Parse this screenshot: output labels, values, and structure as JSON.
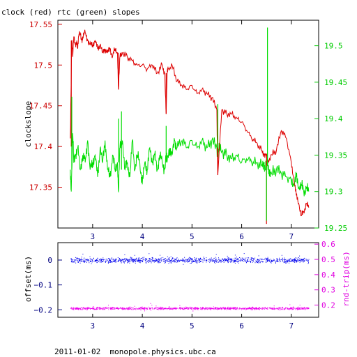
{
  "chart_data": [
    {
      "type": "line",
      "title": "clock (red) rtc (green) slopes",
      "ylabel": "clockslope",
      "xlim": [
        2.3,
        7.55
      ],
      "ylim": [
        17.3,
        17.555
      ],
      "y2lim": [
        19.25,
        19.535
      ],
      "x_ticks": [
        "3",
        "4",
        "5",
        "6",
        "7"
      ],
      "y_ticks": [
        "17.35",
        "17.4",
        "17.45",
        "17.5",
        "17.55"
      ],
      "y2_ticks": [
        "19.25",
        "19.3",
        "19.35",
        "19.4",
        "19.45",
        "19.5"
      ],
      "colors": {
        "clock": "#dd0000",
        "rtc": "#00dd00"
      },
      "series": [
        {
          "axis": "left",
          "x": [
            2.55,
            2.58,
            2.6,
            2.62,
            2.65,
            2.68,
            2.7,
            2.72,
            2.75,
            2.78,
            2.8,
            2.85,
            2.9,
            2.95,
            3.0,
            3.05,
            3.1,
            3.15,
            3.2,
            3.25,
            3.3,
            3.35,
            3.4,
            3.45,
            3.5,
            3.52,
            3.55,
            3.6,
            3.7,
            3.8,
            3.9,
            4.0,
            4.1,
            4.2,
            4.3,
            4.4,
            4.45,
            4.48,
            4.5,
            4.52,
            4.6,
            4.7,
            4.8,
            4.9,
            5.0,
            5.1,
            5.2,
            5.3,
            5.4,
            5.5,
            5.52,
            5.6,
            5.7,
            5.8,
            5.9,
            6.0,
            6.1,
            6.2,
            6.3,
            6.4,
            6.45,
            6.5,
            6.52,
            6.6,
            6.7,
            6.8,
            6.9,
            7.0,
            7.05,
            7.1,
            7.15,
            7.2,
            7.25,
            7.3,
            7.35
          ],
          "y": [
            17.41,
            17.53,
            17.51,
            17.535,
            17.525,
            17.53,
            17.52,
            17.535,
            17.54,
            17.53,
            17.535,
            17.54,
            17.53,
            17.525,
            17.525,
            17.53,
            17.52,
            17.525,
            17.515,
            17.52,
            17.515,
            17.52,
            17.51,
            17.52,
            17.515,
            17.47,
            17.51,
            17.515,
            17.51,
            17.505,
            17.5,
            17.5,
            17.495,
            17.5,
            17.49,
            17.5,
            17.49,
            17.44,
            17.49,
            17.495,
            17.5,
            17.48,
            17.475,
            17.47,
            17.475,
            17.465,
            17.47,
            17.465,
            17.46,
            17.445,
            17.365,
            17.445,
            17.44,
            17.44,
            17.435,
            17.43,
            17.42,
            17.41,
            17.405,
            17.395,
            17.39,
            17.39,
            17.38,
            17.39,
            17.395,
            17.42,
            17.41,
            17.38,
            17.36,
            17.34,
            17.33,
            17.315,
            17.32,
            17.33,
            17.325
          ]
        },
        {
          "axis": "right",
          "x": [
            2.55,
            2.57,
            2.6,
            2.62,
            2.65,
            2.7,
            2.75,
            2.8,
            2.85,
            2.9,
            2.95,
            3.0,
            3.05,
            3.1,
            3.15,
            3.2,
            3.25,
            3.3,
            3.35,
            3.4,
            3.45,
            3.5,
            3.52,
            3.55,
            3.6,
            3.65,
            3.7,
            3.75,
            3.8,
            3.85,
            3.9,
            3.95,
            4.0,
            4.05,
            4.1,
            4.15,
            4.2,
            4.25,
            4.3,
            4.35,
            4.4,
            4.45,
            4.48,
            4.5,
            4.55,
            4.6,
            4.65,
            4.7,
            4.8,
            4.9,
            5.0,
            5.1,
            5.2,
            5.3,
            5.4,
            5.5,
            5.52,
            5.55,
            5.6,
            5.7,
            5.8,
            5.9,
            6.0,
            6.1,
            6.2,
            6.3,
            6.4,
            6.45,
            6.47,
            6.5,
            6.52,
            6.55,
            6.6,
            6.7,
            6.8,
            6.9,
            7.0,
            7.05,
            7.1,
            7.15,
            7.2,
            7.25,
            7.3,
            7.35
          ],
          "y": [
            19.33,
            19.3,
            19.38,
            19.34,
            19.35,
            19.36,
            19.33,
            19.35,
            19.34,
            19.37,
            19.33,
            19.34,
            19.35,
            19.32,
            19.36,
            19.34,
            19.37,
            19.33,
            19.32,
            19.35,
            19.33,
            19.34,
            19.3,
            19.36,
            19.37,
            19.33,
            19.34,
            19.32,
            19.37,
            19.33,
            19.35,
            19.34,
            19.31,
            19.34,
            19.33,
            19.36,
            19.34,
            19.35,
            19.33,
            19.35,
            19.34,
            19.33,
            19.35,
            19.34,
            19.36,
            19.35,
            19.37,
            19.36,
            19.37,
            19.36,
            19.37,
            19.36,
            19.37,
            19.36,
            19.37,
            19.36,
            19.35,
            19.36,
            19.355,
            19.35,
            19.345,
            19.35,
            19.34,
            19.345,
            19.34,
            19.34,
            19.335,
            19.34,
            19.33,
            19.34,
            19.335,
            19.33,
            19.325,
            19.33,
            19.325,
            19.32,
            19.315,
            19.31,
            19.32,
            19.305,
            19.31,
            19.3,
            19.305,
            19.3
          ]
        }
      ],
      "spikes": [
        {
          "axis": "left",
          "x": 2.57,
          "from": 17.53,
          "to": 17.4
        },
        {
          "axis": "left",
          "x": 3.52,
          "from": 17.515,
          "to": 17.47
        },
        {
          "axis": "left",
          "x": 4.48,
          "from": 17.49,
          "to": 17.44
        },
        {
          "axis": "left",
          "x": 5.52,
          "from": 17.445,
          "to": 17.365
        },
        {
          "axis": "left",
          "x": 6.5,
          "from": 17.39,
          "to": 17.305
        },
        {
          "axis": "right",
          "x": 2.58,
          "from": 19.33,
          "to": 19.43
        },
        {
          "axis": "right",
          "x": 3.52,
          "from": 19.34,
          "to": 19.4
        },
        {
          "axis": "right",
          "x": 3.58,
          "from": 19.33,
          "to": 19.41
        },
        {
          "axis": "right",
          "x": 4.48,
          "from": 19.34,
          "to": 19.39
        },
        {
          "axis": "right",
          "x": 5.52,
          "from": 19.36,
          "to": 19.42
        },
        {
          "axis": "right",
          "x": 6.52,
          "from": 19.335,
          "to": 19.525
        },
        {
          "axis": "right",
          "x": 6.5,
          "from": 19.335,
          "to": 19.26
        }
      ]
    },
    {
      "type": "scatter",
      "ylabel": "offset(ms)",
      "y2label": "rnd-trip(ms)",
      "xlim": [
        2.3,
        7.55
      ],
      "ylim": [
        -0.23,
        0.07
      ],
      "y2lim": [
        0.12,
        0.61
      ],
      "x_ticks": [
        "3",
        "4",
        "5",
        "6",
        "7"
      ],
      "y_ticks": [
        "-0.2",
        "-0.1",
        "0"
      ],
      "y2_ticks": [
        "0.2",
        "0.3",
        "0.4",
        "0.5",
        "0.6"
      ],
      "colors": {
        "offset": "#0000ee",
        "rnd_trip": "#ee00ee"
      },
      "series": [
        {
          "name": "offset",
          "axis": "left",
          "x_range": [
            2.55,
            7.35
          ],
          "level": 0.0,
          "spread": 0.015
        },
        {
          "name": "rnd-trip",
          "axis": "right",
          "x_range": [
            2.55,
            7.35
          ],
          "level": 0.18,
          "spread": 0.012
        }
      ]
    }
  ],
  "footer": "2011-01-02  monopole.physics.ubc.ca"
}
